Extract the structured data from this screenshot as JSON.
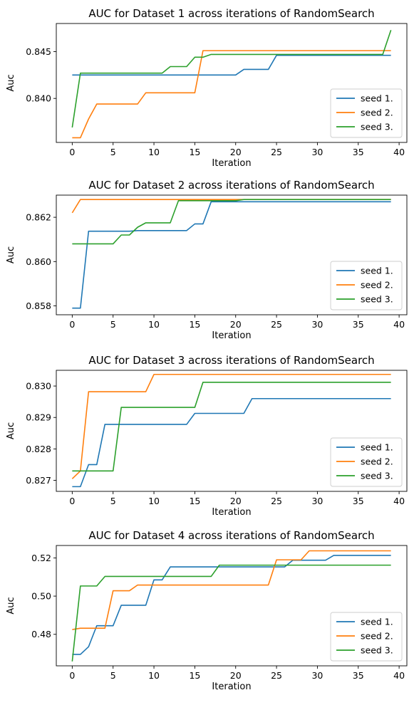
{
  "chart_data": [
    {
      "type": "line",
      "title": "AUC for Dataset 1 across iterations of RandomSearch",
      "xlabel": "Iteration",
      "ylabel": "Auc",
      "xlim": [
        -1.95,
        40.95
      ],
      "ylim": [
        0.8353,
        0.848
      ],
      "xticks": [
        0,
        5,
        10,
        15,
        20,
        25,
        30,
        35,
        40
      ],
      "yticks": [
        0.84,
        0.845
      ],
      "ytick_labels": [
        "0.840",
        "0.845"
      ],
      "grid": false,
      "legend": "lower-right",
      "series": [
        {
          "name": "seed 1.",
          "color": "#1f77b4",
          "points": [
            [
              0,
              0.8425
            ],
            [
              20,
              0.8425
            ],
            [
              21,
              0.8431
            ],
            [
              24,
              0.8431
            ],
            [
              25,
              0.8446
            ],
            [
              39,
              0.8446
            ]
          ]
        },
        {
          "name": "seed 2.",
          "color": "#ff7f0e",
          "points": [
            [
              0,
              0.8358
            ],
            [
              1,
              0.8358
            ],
            [
              2,
              0.8378
            ],
            [
              3,
              0.8394
            ],
            [
              8,
              0.8394
            ],
            [
              9,
              0.8406
            ],
            [
              15,
              0.8406
            ],
            [
              16,
              0.8451
            ],
            [
              39,
              0.8451
            ]
          ]
        },
        {
          "name": "seed 3.",
          "color": "#2ca02c",
          "points": [
            [
              0,
              0.8369
            ],
            [
              1,
              0.8427
            ],
            [
              11,
              0.8427
            ],
            [
              12,
              0.8434
            ],
            [
              14,
              0.8434
            ],
            [
              15,
              0.8444
            ],
            [
              16,
              0.8444
            ],
            [
              17,
              0.8447
            ],
            [
              38,
              0.8447
            ],
            [
              39,
              0.8473
            ]
          ]
        }
      ]
    },
    {
      "type": "line",
      "title": "AUC for Dataset 2 across iterations of RandomSearch",
      "xlabel": "Iteration",
      "ylabel": "Auc",
      "xlim": [
        -1.95,
        40.95
      ],
      "ylim": [
        0.8576,
        0.863
      ],
      "xticks": [
        0,
        5,
        10,
        15,
        20,
        25,
        30,
        35,
        40
      ],
      "yticks": [
        0.858,
        0.86,
        0.862
      ],
      "ytick_labels": [
        "0.858",
        "0.860",
        "0.862"
      ],
      "grid": false,
      "legend": "lower-right",
      "series": [
        {
          "name": "seed 1.",
          "color": "#1f77b4",
          "points": [
            [
              0,
              0.8579
            ],
            [
              1,
              0.8579
            ],
            [
              2,
              0.86137
            ],
            [
              7,
              0.86137
            ],
            [
              8,
              0.8614
            ],
            [
              14,
              0.8614
            ],
            [
              15,
              0.8617
            ],
            [
              16,
              0.8617
            ],
            [
              17,
              0.8627
            ],
            [
              39,
              0.8627
            ]
          ]
        },
        {
          "name": "seed 2.",
          "color": "#ff7f0e",
          "points": [
            [
              0,
              0.8622
            ],
            [
              1,
              0.8628
            ],
            [
              39,
              0.8628
            ]
          ]
        },
        {
          "name": "seed 3.",
          "color": "#2ca02c",
          "points": [
            [
              0,
              0.8608
            ],
            [
              5,
              0.8608
            ],
            [
              6,
              0.8612
            ],
            [
              7,
              0.8612
            ],
            [
              8,
              0.86155
            ],
            [
              9,
              0.86175
            ],
            [
              12,
              0.86175
            ],
            [
              13,
              0.86275
            ],
            [
              20,
              0.86275
            ],
            [
              21,
              0.8628
            ],
            [
              39,
              0.8628
            ]
          ]
        }
      ]
    },
    {
      "type": "line",
      "title": "AUC for Dataset 3 across iterations of RandomSearch",
      "xlabel": "Iteration",
      "ylabel": "Auc",
      "xlim": [
        -1.95,
        40.95
      ],
      "ylim": [
        0.82665,
        0.8305
      ],
      "xticks": [
        0,
        5,
        10,
        15,
        20,
        25,
        30,
        35,
        40
      ],
      "yticks": [
        0.827,
        0.828,
        0.829,
        0.83
      ],
      "ytick_labels": [
        "0.827",
        "0.828",
        "0.829",
        "0.830"
      ],
      "grid": false,
      "legend": "lower-right",
      "series": [
        {
          "name": "seed 1.",
          "color": "#1f77b4",
          "points": [
            [
              0,
              0.8268
            ],
            [
              1,
              0.8268
            ],
            [
              2,
              0.8275
            ],
            [
              3,
              0.8275
            ],
            [
              4,
              0.82878
            ],
            [
              14,
              0.82878
            ],
            [
              15,
              0.82913
            ],
            [
              21,
              0.82913
            ],
            [
              22,
              0.8296
            ],
            [
              39,
              0.8296
            ]
          ]
        },
        {
          "name": "seed 2.",
          "color": "#ff7f0e",
          "points": [
            [
              0,
              0.82705
            ],
            [
              1,
              0.8273
            ],
            [
              2,
              0.82982
            ],
            [
              9,
              0.82982
            ],
            [
              10,
              0.83037
            ],
            [
              39,
              0.83037
            ]
          ]
        },
        {
          "name": "seed 3.",
          "color": "#2ca02c",
          "points": [
            [
              0,
              0.8273
            ],
            [
              5,
              0.8273
            ],
            [
              6,
              0.82932
            ],
            [
              15,
              0.82932
            ],
            [
              16,
              0.83012
            ],
            [
              39,
              0.83012
            ]
          ]
        }
      ]
    },
    {
      "type": "line",
      "title": "AUC for Dataset 4 across iterations of RandomSearch",
      "xlabel": "Iteration",
      "ylabel": "Auc",
      "xlim": [
        -1.95,
        40.95
      ],
      "ylim": [
        0.4635,
        0.5265
      ],
      "xticks": [
        0,
        5,
        10,
        15,
        20,
        25,
        30,
        35,
        40
      ],
      "yticks": [
        0.48,
        0.5,
        0.52
      ],
      "ytick_labels": [
        "0.48",
        "0.50",
        "0.52"
      ],
      "grid": false,
      "legend": "lower-right",
      "series": [
        {
          "name": "seed 1.",
          "color": "#1f77b4",
          "points": [
            [
              0,
              0.4695
            ],
            [
              1,
              0.4695
            ],
            [
              2,
              0.4735
            ],
            [
              3,
              0.4845
            ],
            [
              5,
              0.4845
            ],
            [
              6,
              0.4952
            ],
            [
              9,
              0.4952
            ],
            [
              10,
              0.5085
            ],
            [
              11,
              0.5085
            ],
            [
              12,
              0.5153
            ],
            [
              26,
              0.5153
            ],
            [
              27,
              0.5188
            ],
            [
              31,
              0.5188
            ],
            [
              32,
              0.5213
            ],
            [
              39,
              0.5213
            ]
          ]
        },
        {
          "name": "seed 2.",
          "color": "#ff7f0e",
          "points": [
            [
              0,
              0.4825
            ],
            [
              1,
              0.4832
            ],
            [
              4,
              0.4832
            ],
            [
              5,
              0.5028
            ],
            [
              7,
              0.5028
            ],
            [
              8,
              0.5058
            ],
            [
              24,
              0.5058
            ],
            [
              25,
              0.519
            ],
            [
              28,
              0.519
            ],
            [
              29,
              0.5237
            ],
            [
              39,
              0.5237
            ]
          ]
        },
        {
          "name": "seed 3.",
          "color": "#2ca02c",
          "points": [
            [
              0,
              0.4658
            ],
            [
              1,
              0.5053
            ],
            [
              3,
              0.5053
            ],
            [
              4,
              0.5103
            ],
            [
              17,
              0.5103
            ],
            [
              18,
              0.5162
            ],
            [
              39,
              0.5162
            ]
          ]
        }
      ]
    }
  ]
}
